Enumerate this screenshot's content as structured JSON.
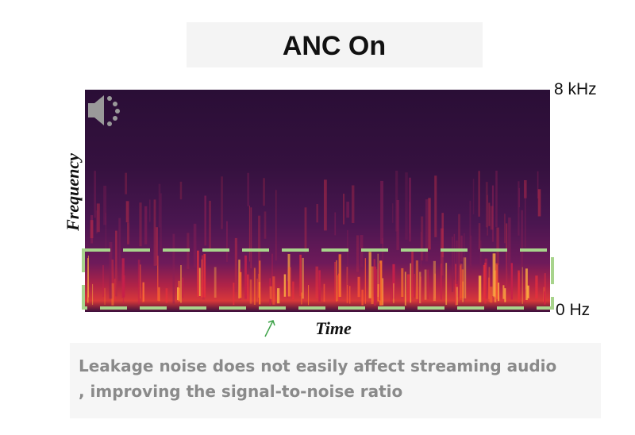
{
  "title": "ANC On",
  "spectrogram": {
    "top_label": "8 kHz",
    "bottom_label": "0 Hz",
    "y_axis_label": "Frequency",
    "x_axis_label": "Time"
  },
  "caption": {
    "lines": [
      "Leakage noise does not easily affect streaming audio",
      ", improving the signal-to-noise ratio"
    ]
  }
}
